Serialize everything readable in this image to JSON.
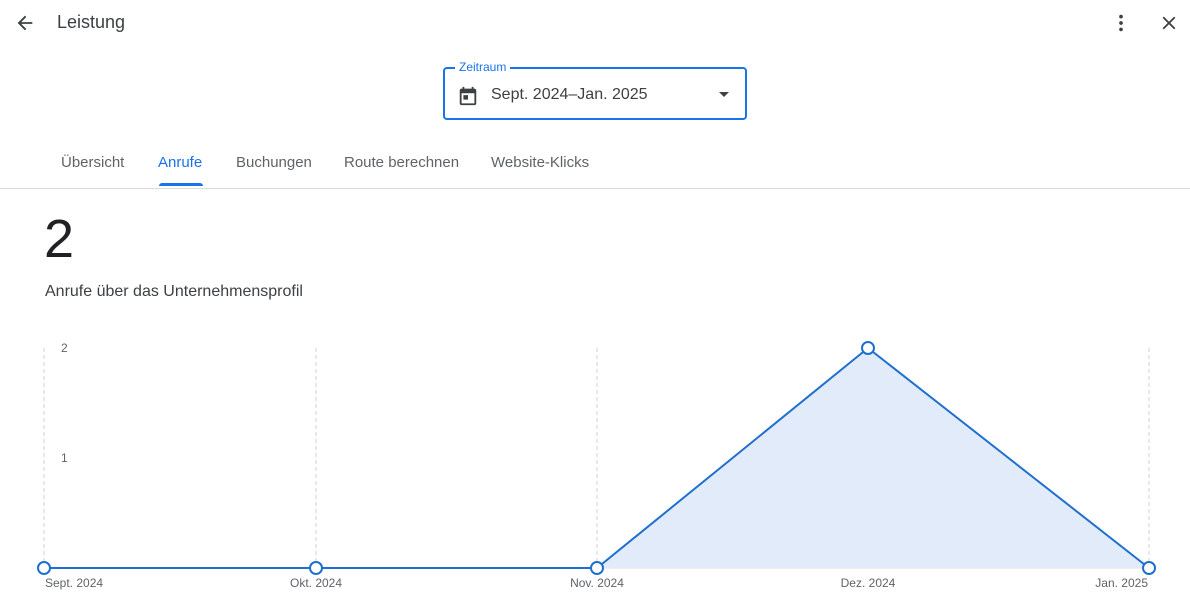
{
  "header": {
    "title": "Leistung",
    "back_icon": "arrow-back-icon",
    "more_icon": "more-vert-icon",
    "close_icon": "close-icon"
  },
  "date_range": {
    "label": "Zeitraum",
    "value": "Sept. 2024–Jan. 2025",
    "icon": "calendar-icon"
  },
  "tabs": [
    {
      "label": "Übersicht",
      "active": false
    },
    {
      "label": "Anrufe",
      "active": true
    },
    {
      "label": "Buchungen",
      "active": false
    },
    {
      "label": "Route berechnen",
      "active": false
    },
    {
      "label": "Website-Klicks",
      "active": false
    }
  ],
  "summary": {
    "total": "2",
    "description": "Anrufe über das Unternehmensprofil"
  },
  "colors": {
    "accent": "#1a73e8",
    "line": "#1f6fd0",
    "area_fill": "#e2ebfa"
  },
  "chart_data": {
    "type": "area",
    "categories": [
      "Sept. 2024",
      "Okt. 2024",
      "Nov. 2024",
      "Dez. 2024",
      "Jan. 2025"
    ],
    "values": [
      0,
      0,
      0,
      2,
      0
    ],
    "y_ticks": [
      "1",
      "2"
    ],
    "ylim": [
      0,
      2
    ],
    "grid": "vertical-dashed",
    "markers": "hollow-circles"
  }
}
